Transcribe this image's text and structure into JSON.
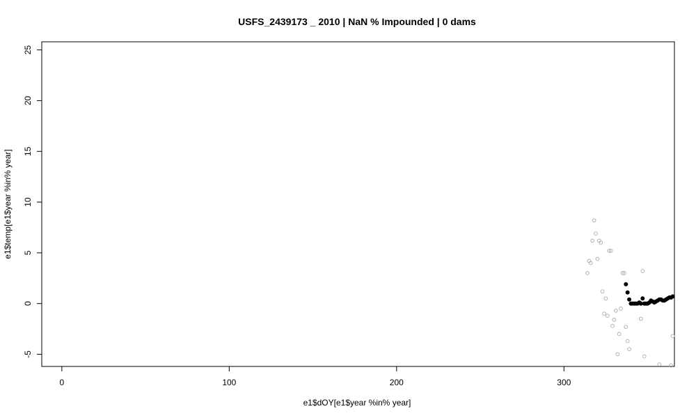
{
  "chart_data": {
    "type": "scatter",
    "title": "USFS_2439173 _ 2010   |   NaN  % Impounded |  0  dams",
    "xlabel": "e1$dOY[e1$year %in% year]",
    "ylabel": "e1$temp[e1$year %in% year]",
    "xlim": [
      -12,
      366
    ],
    "ylim": [
      -6.2,
      25.8
    ],
    "xticks": [
      0,
      100,
      200,
      300
    ],
    "yticks": [
      -5,
      0,
      5,
      10,
      15,
      20,
      25
    ],
    "grid": false,
    "legend": "none",
    "series": [
      {
        "color": "#aaaaaa",
        "marker": "open-circle",
        "points": [
          [
            314,
            3.0
          ],
          [
            315,
            4.2
          ],
          [
            316,
            4.0
          ],
          [
            317,
            6.2
          ],
          [
            318,
            8.2
          ],
          [
            319,
            6.9
          ],
          [
            320,
            4.4
          ],
          [
            321,
            6.2
          ],
          [
            322,
            6.0
          ],
          [
            323,
            1.2
          ],
          [
            324,
            -1.0
          ],
          [
            325,
            0.5
          ],
          [
            326,
            -1.2
          ],
          [
            327,
            5.2
          ],
          [
            328,
            5.2
          ],
          [
            329,
            -2.2
          ],
          [
            330,
            -1.6
          ],
          [
            331,
            -0.7
          ],
          [
            332,
            -5.0
          ],
          [
            333,
            -3.0
          ],
          [
            334,
            -0.5
          ],
          [
            335,
            3.0
          ],
          [
            336,
            3.0
          ],
          [
            337,
            -2.3
          ],
          [
            338,
            -3.7
          ],
          [
            339,
            -4.5
          ],
          [
            346,
            -1.5
          ],
          [
            347,
            3.2
          ],
          [
            348,
            -5.2
          ],
          [
            357,
            -6.0
          ],
          [
            364,
            -6.1
          ],
          [
            365,
            -3.2
          ]
        ]
      },
      {
        "color": "#000000",
        "marker": "filled-circle",
        "points": [
          [
            337,
            1.9
          ],
          [
            338,
            1.1
          ],
          [
            339,
            0.4
          ],
          [
            340,
            0.0
          ],
          [
            341,
            0.0
          ],
          [
            342,
            0.0
          ],
          [
            343,
            0.0
          ],
          [
            344,
            0.0
          ],
          [
            345,
            0.1
          ],
          [
            346,
            0.0
          ],
          [
            347,
            0.5
          ],
          [
            348,
            0.0
          ],
          [
            349,
            0.0
          ],
          [
            350,
            0.0
          ],
          [
            351,
            0.1
          ],
          [
            352,
            0.3
          ],
          [
            353,
            0.2
          ],
          [
            354,
            0.1
          ],
          [
            355,
            0.2
          ],
          [
            356,
            0.3
          ],
          [
            357,
            0.4
          ],
          [
            358,
            0.4
          ],
          [
            359,
            0.3
          ],
          [
            360,
            0.3
          ],
          [
            361,
            0.4
          ],
          [
            362,
            0.5
          ],
          [
            363,
            0.6
          ],
          [
            364,
            0.6
          ],
          [
            365,
            0.7
          ]
        ]
      }
    ]
  }
}
